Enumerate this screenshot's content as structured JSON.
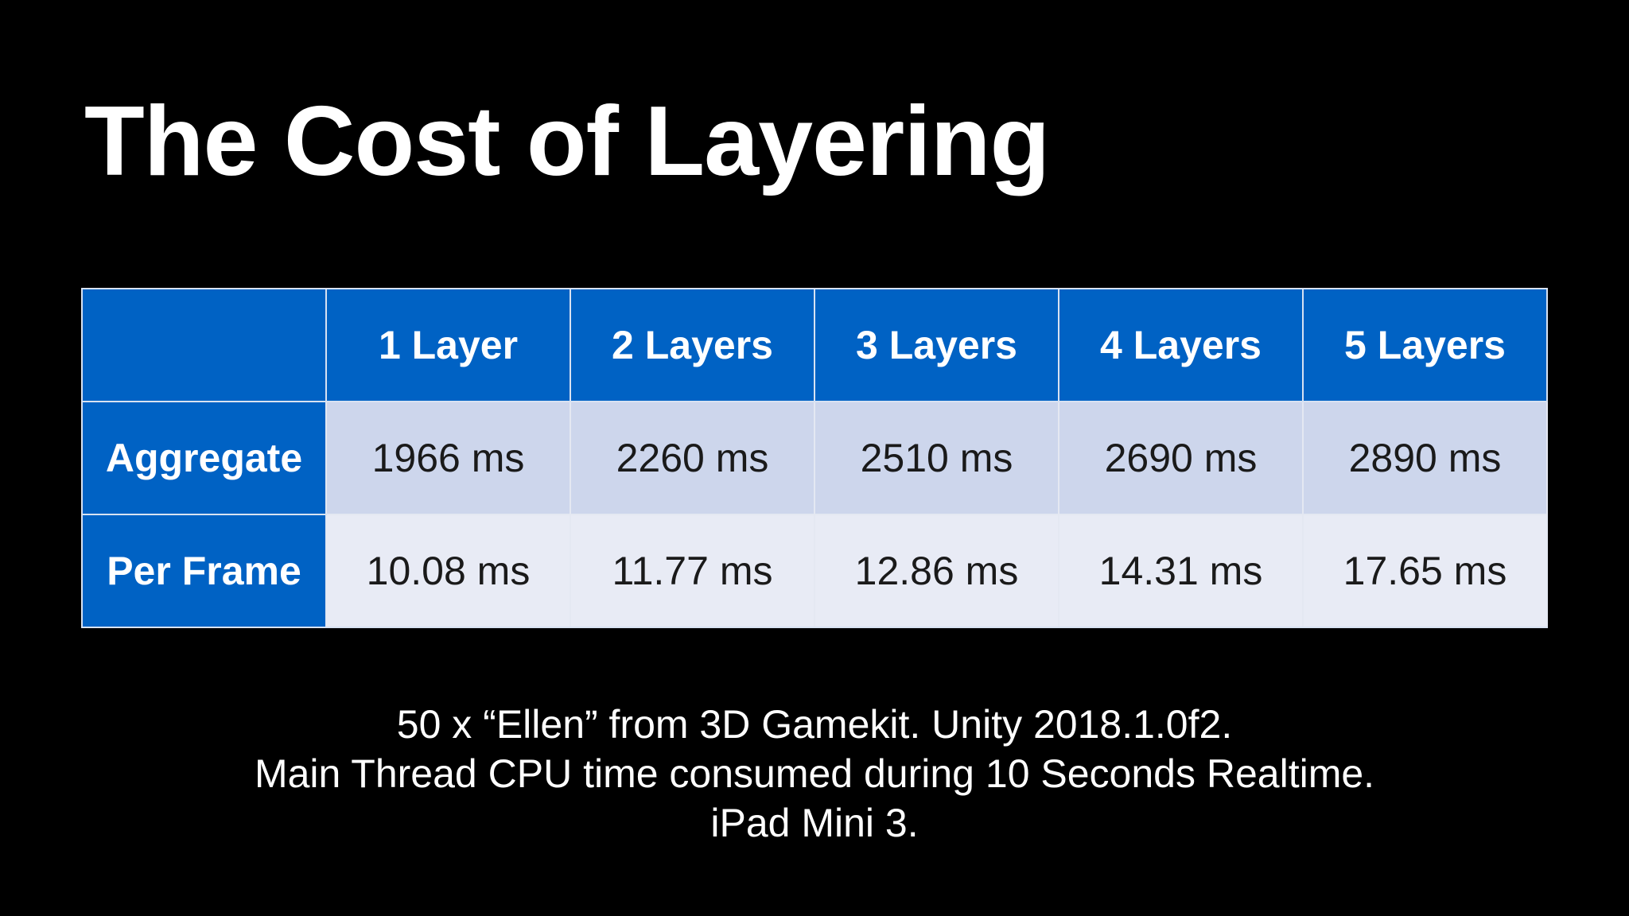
{
  "slide": {
    "title": "The Cost of Layering"
  },
  "table": {
    "corner": "",
    "columns": [
      "1 Layer",
      "2 Layers",
      "3 Layers",
      "4 Layers",
      "5 Layers"
    ],
    "rows": [
      {
        "label": "Aggregate",
        "values": [
          "1966 ms",
          "2260 ms",
          "2510 ms",
          "2690 ms",
          "2890 ms"
        ]
      },
      {
        "label": "Per Frame",
        "values": [
          "10.08 ms",
          "11.77 ms",
          "12.86 ms",
          "14.31 ms",
          "17.65 ms"
        ]
      }
    ]
  },
  "caption": {
    "lines": [
      "50 x “Ellen” from 3D Gamekit. Unity 2018.1.0f2.",
      "Main Thread CPU time consumed during 10 Seconds Realtime.",
      "iPad Mini 3."
    ]
  },
  "colors": {
    "background": "#000000",
    "header_blue": "#0062c4",
    "row_aggregate": "#cdd6ec",
    "row_per_frame": "#e8ebf5"
  },
  "chart_data": {
    "type": "table",
    "title": "The Cost of Layering",
    "categories": [
      "1 Layer",
      "2 Layers",
      "3 Layers",
      "4 Layers",
      "5 Layers"
    ],
    "series": [
      {
        "name": "Aggregate",
        "values": [
          1966,
          2260,
          2510,
          2690,
          2890
        ],
        "unit": "ms"
      },
      {
        "name": "Per Frame",
        "values": [
          10.08,
          11.77,
          12.86,
          14.31,
          17.65
        ],
        "unit": "ms"
      }
    ]
  }
}
